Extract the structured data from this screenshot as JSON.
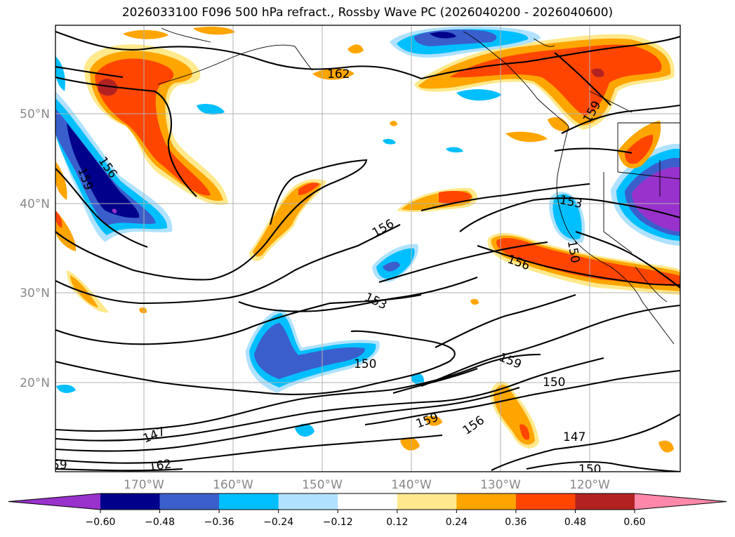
{
  "title": "2026033100 F096 500 hPa refract., Rossby Wave PC (2026040200 - 2026040600)",
  "map": {
    "lat_labels": [
      "50°N",
      "40°N",
      "30°N",
      "20°N"
    ],
    "lon_labels": [
      "170°W",
      "160°W",
      "150°W",
      "140°W",
      "130°W",
      "120°W"
    ],
    "contour_labels": [
      {
        "text": "162"
      },
      {
        "text": "159"
      },
      {
        "text": "156"
      },
      {
        "text": "159"
      },
      {
        "text": "153"
      },
      {
        "text": "150"
      },
      {
        "text": "156"
      },
      {
        "text": "156"
      },
      {
        "text": "153"
      },
      {
        "text": "150"
      },
      {
        "text": "159"
      },
      {
        "text": "150"
      },
      {
        "text": "159"
      },
      {
        "text": "156"
      },
      {
        "text": "147"
      },
      {
        "text": "147"
      },
      {
        "text": "162"
      },
      {
        "text": "150"
      },
      {
        "text": "59"
      }
    ]
  },
  "colorbar": {
    "ticks": [
      "−0.60",
      "−0.48",
      "−0.36",
      "−0.24",
      "−0.12",
      "0.12",
      "0.24",
      "0.36",
      "0.48",
      "0.60"
    ],
    "colors": [
      "#9932cc",
      "#00008b",
      "#3a5fcd",
      "#00bfff",
      "#b0e2ff",
      "#ffffff",
      "#ffe98c",
      "#ffa500",
      "#ff4500",
      "#b22222",
      "#ff88aa"
    ]
  }
}
